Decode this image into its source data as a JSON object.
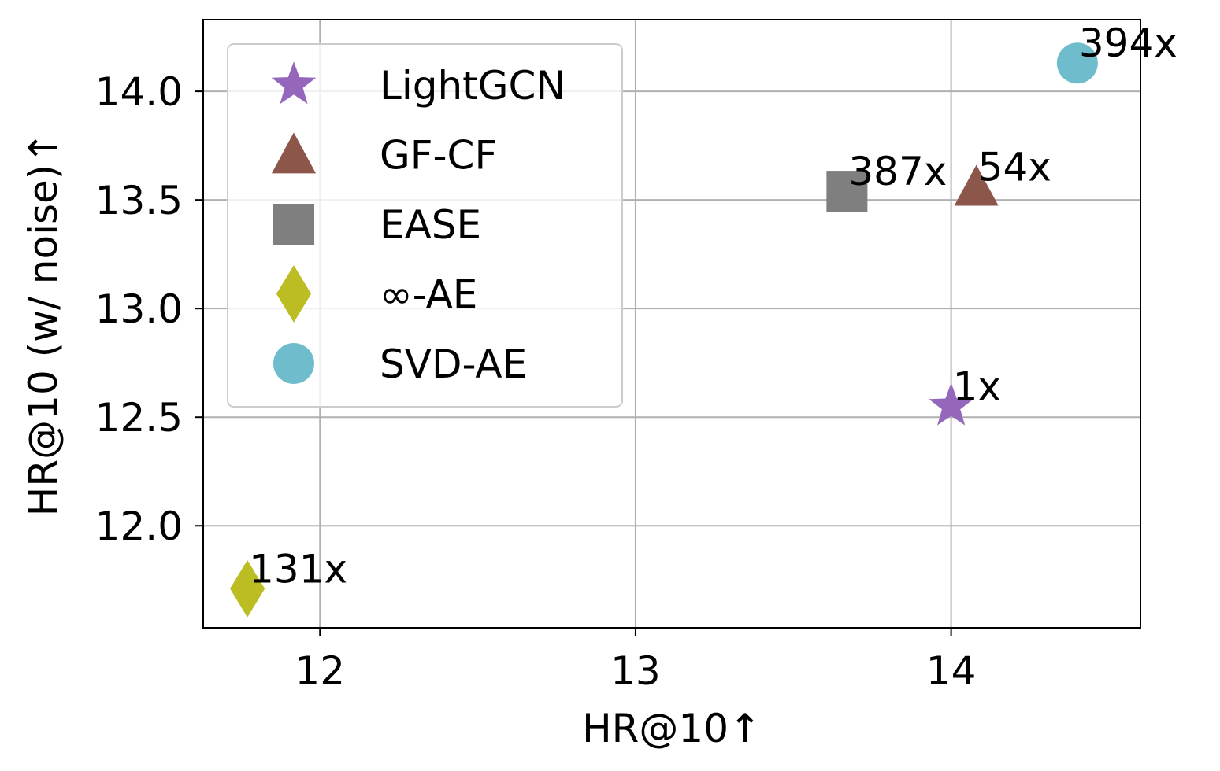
{
  "chart_data": {
    "type": "scatter",
    "xlabel": "HR@10↑",
    "ylabel": "HR@10 (w/ noise)↑",
    "xlim": [
      11.63,
      14.6
    ],
    "ylim": [
      11.53,
      14.33
    ],
    "xticks": [
      12,
      13,
      14
    ],
    "yticks": [
      12.0,
      12.5,
      13.0,
      13.5,
      14.0
    ],
    "xtick_labels": [
      "12",
      "13",
      "14"
    ],
    "ytick_labels": [
      "12.0",
      "12.5",
      "13.0",
      "13.5",
      "14.0"
    ],
    "grid": true,
    "legend_position": "top-left",
    "series": [
      {
        "name": "LightGCN",
        "marker": "star",
        "color": "#9467bd",
        "x": 14.0,
        "y": 12.55,
        "label": "1x"
      },
      {
        "name": "GF-CF",
        "marker": "triangle",
        "color": "#8c564b",
        "x": 14.08,
        "y": 13.56,
        "label": "54x"
      },
      {
        "name": "EASE",
        "marker": "square",
        "color": "#7f7f7f",
        "x": 13.67,
        "y": 13.54,
        "label": "387x"
      },
      {
        "name": "∞-AE",
        "marker": "diamond",
        "color": "#bcbd22",
        "x": 11.77,
        "y": 11.71,
        "label": "131x"
      },
      {
        "name": "SVD-AE",
        "marker": "circle",
        "color": "#6fbdcc",
        "x": 14.4,
        "y": 14.13,
        "label": "394x"
      }
    ]
  }
}
